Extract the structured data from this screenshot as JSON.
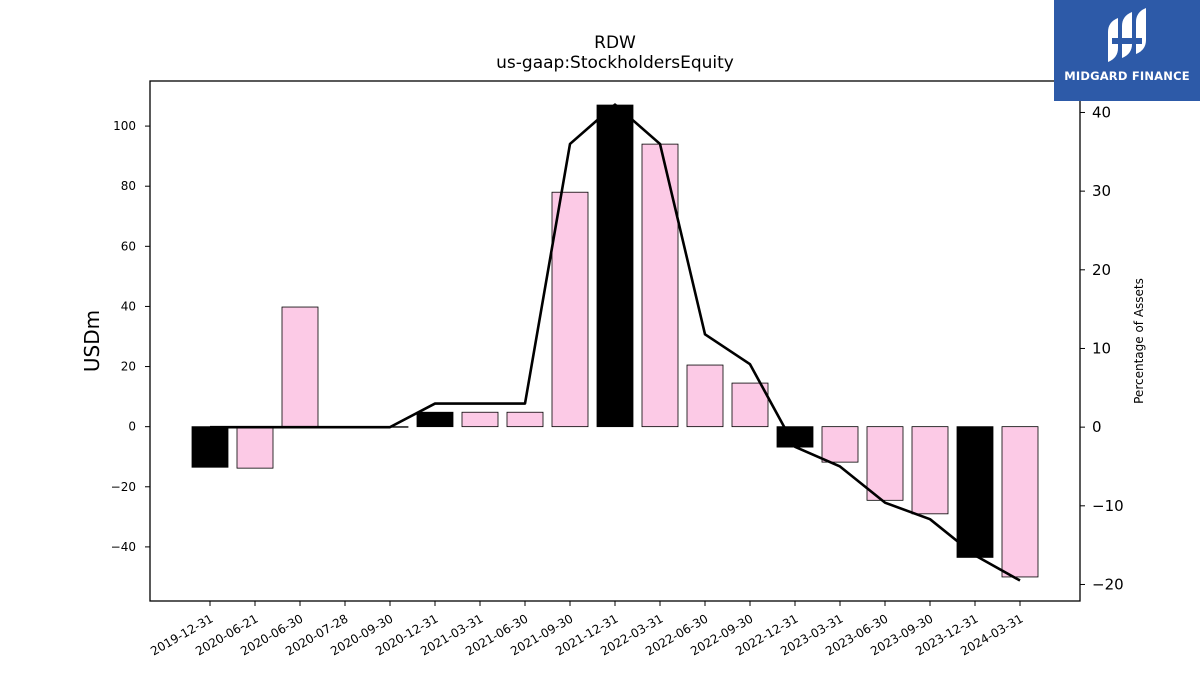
{
  "brand": {
    "name": "MIDGARD FINANCE",
    "color": "#2d5aa8"
  },
  "chart_data": {
    "type": "bar",
    "title": "RDW",
    "subtitle": "us-gaap:StockholdersEquity",
    "ylabel": "USDm",
    "y2label": "Percentage of Assets",
    "categories": [
      "2019-12-31",
      "2020-06-21",
      "2020-06-30",
      "2020-07-28",
      "2020-09-30",
      "2020-12-31",
      "2021-03-31",
      "2021-06-30",
      "2021-09-30",
      "2021-12-31",
      "2022-03-31",
      "2022-06-30",
      "2022-09-30",
      "2022-12-31",
      "2023-03-31",
      "2023-06-30",
      "2023-09-30",
      "2023-12-31",
      "2024-03-31"
    ],
    "series": [
      {
        "values": [
          -13.5,
          -13.8,
          39.8,
          0,
          0,
          4.8,
          4.8,
          4.8,
          78,
          107,
          94,
          20.5,
          14.5,
          -6.8,
          -11.8,
          -24.5,
          -29,
          -43.5,
          -50
        ]
      },
      {
        "axis": "right",
        "type": "line",
        "values": [
          0,
          0,
          0,
          0,
          0,
          3,
          3,
          3,
          36,
          41,
          36,
          11.8,
          8,
          -2.5,
          -5,
          -9.6,
          -11.7,
          -16.3,
          -19.5
        ]
      }
    ],
    "annual_flags": [
      true,
      false,
      false,
      false,
      false,
      true,
      false,
      false,
      false,
      true,
      false,
      false,
      false,
      true,
      false,
      false,
      false,
      true,
      false
    ],
    "colors": {
      "annual": "#000000",
      "quarter": "#fccae6",
      "line": "#000000"
    },
    "yticks": [
      -40,
      -20,
      0,
      20,
      40,
      60,
      80,
      100
    ],
    "ytick_labels": [
      "−40",
      "−20",
      "0",
      "20",
      "40",
      "60",
      "80",
      "100"
    ],
    "y2ticks": [
      -20,
      -10,
      0,
      10,
      20,
      30,
      40
    ],
    "y2tick_labels": [
      "−20",
      "−10",
      "0",
      "10",
      "20",
      "30",
      "40"
    ],
    "ylim": [
      -58,
      115
    ],
    "y2lim": [
      -22.1,
      44
    ]
  }
}
